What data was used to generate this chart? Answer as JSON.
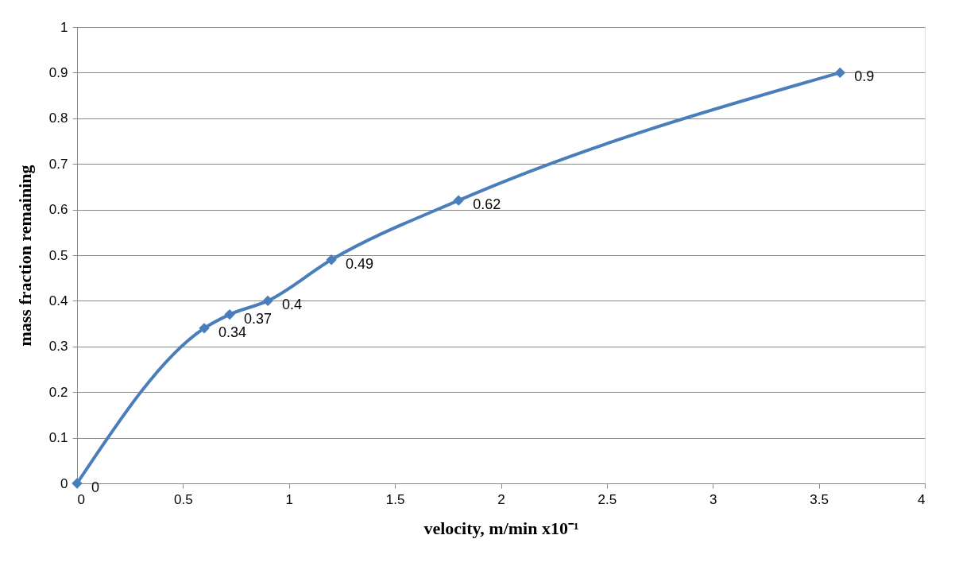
{
  "chart_data": {
    "type": "line",
    "xlabel": "velocity, m/min x10⁻¹",
    "ylabel": "mass fraction remaining",
    "x": [
      0,
      0.6,
      0.72,
      0.9,
      1.2,
      1.8,
      3.6
    ],
    "values": [
      0,
      0.34,
      0.37,
      0.4,
      0.49,
      0.62,
      0.9
    ],
    "color": "#4a7ebb",
    "xlim": [
      0,
      4
    ],
    "xticks": [
      0,
      0.5,
      1,
      1.5,
      2,
      2.5,
      3,
      3.5,
      4
    ],
    "ylim": [
      0,
      1
    ],
    "yticks": [
      0,
      0.1,
      0.2,
      0.3,
      0.4,
      0.5,
      0.6,
      0.7,
      0.8,
      0.9,
      1
    ],
    "grid": "y",
    "marker": "diamond",
    "data_labels": true
  }
}
